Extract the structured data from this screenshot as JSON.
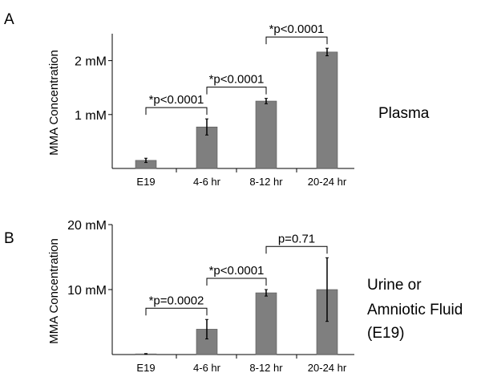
{
  "chart_data": [
    {
      "type": "bar",
      "panel_label": "A",
      "side_label": [
        "Plasma"
      ],
      "ylabel": "MMA Concentration",
      "yunit": "mM",
      "ylim": [
        0,
        2.5
      ],
      "yticks": [
        1,
        2
      ],
      "ytick_labels": [
        "1 mM",
        "2 mM"
      ],
      "categories": [
        "E19",
        "4-6 hr",
        "8-12 hr",
        "20-24 hr"
      ],
      "values": [
        0.15,
        0.77,
        1.25,
        2.16
      ],
      "errors": [
        0.04,
        0.15,
        0.05,
        0.07
      ],
      "comparisons": [
        {
          "from": 0,
          "to": 1,
          "label": "*p<0.0001"
        },
        {
          "from": 1,
          "to": 2,
          "label": "*p<0.0001"
        },
        {
          "from": 2,
          "to": 3,
          "label": "*p<0.0001"
        }
      ]
    },
    {
      "type": "bar",
      "panel_label": "B",
      "side_label": [
        "Urine or",
        "Amniotic Fluid",
        "(E19)"
      ],
      "ylabel": "MMA Concentration",
      "yunit": "mM",
      "ylim": [
        0,
        20
      ],
      "yticks": [
        10,
        20
      ],
      "ytick_labels": [
        "10 mM",
        "20 mM"
      ],
      "categories": [
        "E19",
        "4-6 hr",
        "8-12 hr",
        "20-24 hr"
      ],
      "values": [
        0.1,
        3.9,
        9.5,
        10.0
      ],
      "errors": [
        0.05,
        1.5,
        0.5,
        4.9
      ],
      "comparisons": [
        {
          "from": 0,
          "to": 1,
          "label": "*p=0.0002"
        },
        {
          "from": 1,
          "to": 2,
          "label": "*p<0.0001"
        },
        {
          "from": 2,
          "to": 3,
          "label": "p=0.71"
        }
      ]
    }
  ],
  "colors": {
    "bar": "#7f7f7f",
    "axis": "#000000"
  }
}
